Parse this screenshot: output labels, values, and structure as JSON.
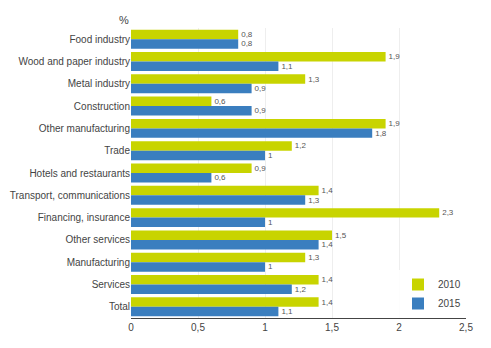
{
  "chart_data": {
    "type": "bar",
    "orientation": "horizontal",
    "categories": [
      "Food industry",
      "Wood and paper industry",
      "Metal industry",
      "Construction",
      "Other manufacturing",
      "Trade",
      "Hotels and restaurants",
      "Transport, communications",
      "Financing, insurance",
      "Other services",
      "Manufacturing",
      "Services",
      "Total"
    ],
    "series": [
      {
        "name": "2010",
        "color": "#c8d400",
        "values": [
          0.8,
          1.9,
          1.3,
          0.6,
          1.9,
          1.2,
          0.9,
          1.4,
          2.3,
          1.5,
          1.3,
          1.4,
          1.4
        ],
        "value_labels": [
          "0,8",
          "1,9",
          "1,3",
          "0,6",
          "1,9",
          "1,2",
          "0,9",
          "1,4",
          "2,3",
          "1,5",
          "1,3",
          "1,4",
          "1,4"
        ]
      },
      {
        "name": "2015",
        "color": "#3a7ebf",
        "values": [
          0.8,
          1.1,
          0.9,
          0.9,
          1.8,
          1.0,
          0.6,
          1.3,
          1.0,
          1.4,
          1.0,
          1.2,
          1.1
        ],
        "value_labels": [
          "0,8",
          "1,1",
          "0,9",
          "0,9",
          "1,8",
          "1",
          "0,6",
          "1,3",
          "1",
          "1,4",
          "1",
          "1,2",
          "1,1"
        ]
      }
    ],
    "xlim": [
      0,
      2.5
    ],
    "xticks": [
      0,
      {
        "value": 0.5,
        "label": "0,5"
      },
      1,
      {
        "value": 1.5,
        "label": "1,5"
      },
      2,
      {
        "value": 2.5,
        "label": "2,5"
      }
    ],
    "annotations": [
      "%"
    ],
    "data_labels": true,
    "grid": true,
    "legend": "lower right"
  }
}
